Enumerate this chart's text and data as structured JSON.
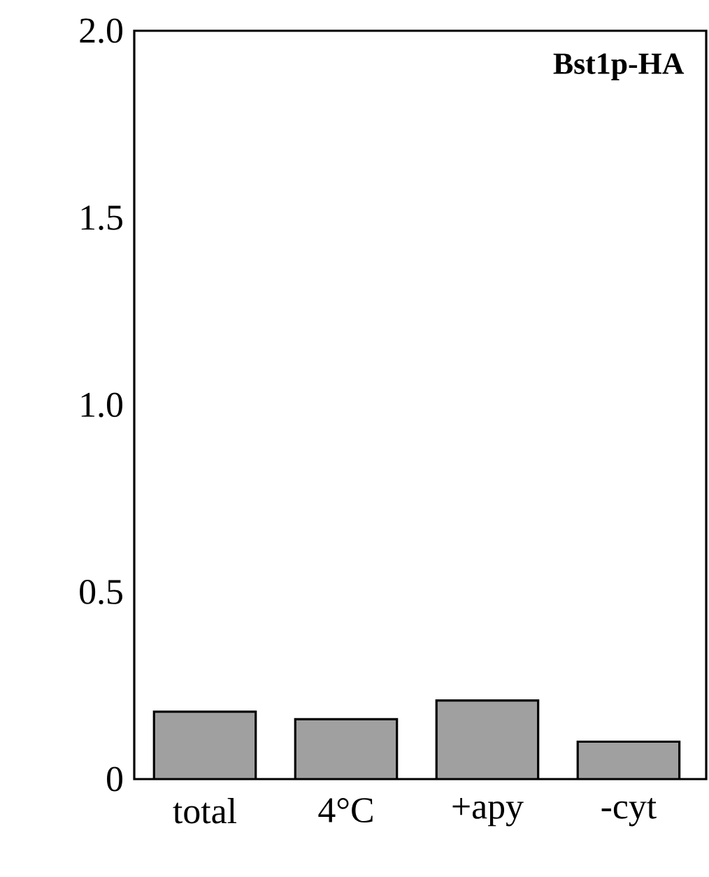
{
  "chart_data": {
    "type": "bar",
    "title": "Bst1p-HA",
    "categories": [
      "total",
      "4°C",
      "+apy",
      "-cyt"
    ],
    "values": [
      0.18,
      0.16,
      0.21,
      0.1
    ],
    "color": "#a0a0a0",
    "ylim": [
      0,
      2.0
    ],
    "yticks": [
      0,
      0.5,
      {
        "value": 1.0,
        "label": "1.0"
      },
      1.5,
      {
        "value": 2.0,
        "label": "2.0"
      }
    ]
  }
}
